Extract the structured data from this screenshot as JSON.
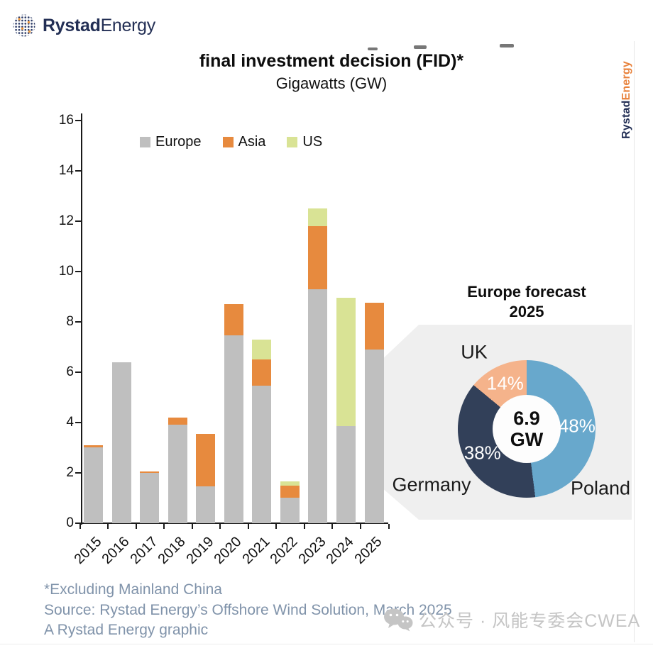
{
  "brand": {
    "logo_bold": "Rystad",
    "logo_light": "Energy",
    "vertical_bold": "Rystad",
    "vertical_light": "Energy",
    "navy": "#232f55",
    "orange": "#e8823c"
  },
  "header": {
    "title": "final investment decision (FID)*",
    "subtitle": "Gigawatts (GW)"
  },
  "chart_data": [
    {
      "type": "bar",
      "stacked": true,
      "title": "final investment decision (FID)*",
      "unit_label": "Gigawatts (GW)",
      "categories": [
        "2015",
        "2016",
        "2017",
        "2018",
        "2019",
        "2020",
        "2021",
        "2022",
        "2023",
        "2024",
        "2025"
      ],
      "series": [
        {
          "name": "Europe",
          "color": "#bfbfbf",
          "values": [
            3.0,
            6.4,
            2.0,
            3.9,
            1.45,
            7.45,
            5.45,
            1.0,
            9.3,
            3.85,
            6.9
          ]
        },
        {
          "name": "Asia",
          "color": "#e78a3e",
          "values": [
            0.1,
            0,
            0.05,
            0.3,
            2.1,
            1.25,
            1.05,
            0.5,
            2.5,
            0,
            1.85
          ]
        },
        {
          "name": "US",
          "color": "#d9e395",
          "values": [
            0,
            0,
            0,
            0,
            0,
            0,
            0.8,
            0.15,
            0.7,
            5.1,
            0
          ]
        }
      ],
      "totals": [
        3.1,
        6.4,
        2.05,
        4.2,
        3.55,
        8.7,
        7.3,
        1.65,
        12.5,
        8.95,
        8.75
      ],
      "ylim": [
        0,
        16
      ],
      "yticks": [
        0,
        2,
        4,
        6,
        8,
        10,
        12,
        14,
        16
      ],
      "grid": false,
      "legend_position": "top"
    },
    {
      "type": "pie",
      "donut": true,
      "title_line1": "Europe forecast",
      "title_line2": "2025",
      "center_value": "6.9",
      "center_unit": "GW",
      "slices": [
        {
          "label": "Poland",
          "pct": 48,
          "pct_label": "48%",
          "color": "#68a8cc"
        },
        {
          "label": "Germany",
          "pct": 38,
          "pct_label": "38%",
          "color": "#324059"
        },
        {
          "label": "UK",
          "pct": 14,
          "pct_label": "14%",
          "color": "#f5b38b"
        }
      ]
    }
  ],
  "footer": {
    "note": "*Excluding Mainland China",
    "source": "Source: Rystad Energy’s Offshore Wind Solution, March 2025",
    "credit": "A Rystad Energy graphic"
  },
  "watermark": {
    "icon": "wechat-icon",
    "text": "公众号 · 风能专委会CWEA"
  }
}
